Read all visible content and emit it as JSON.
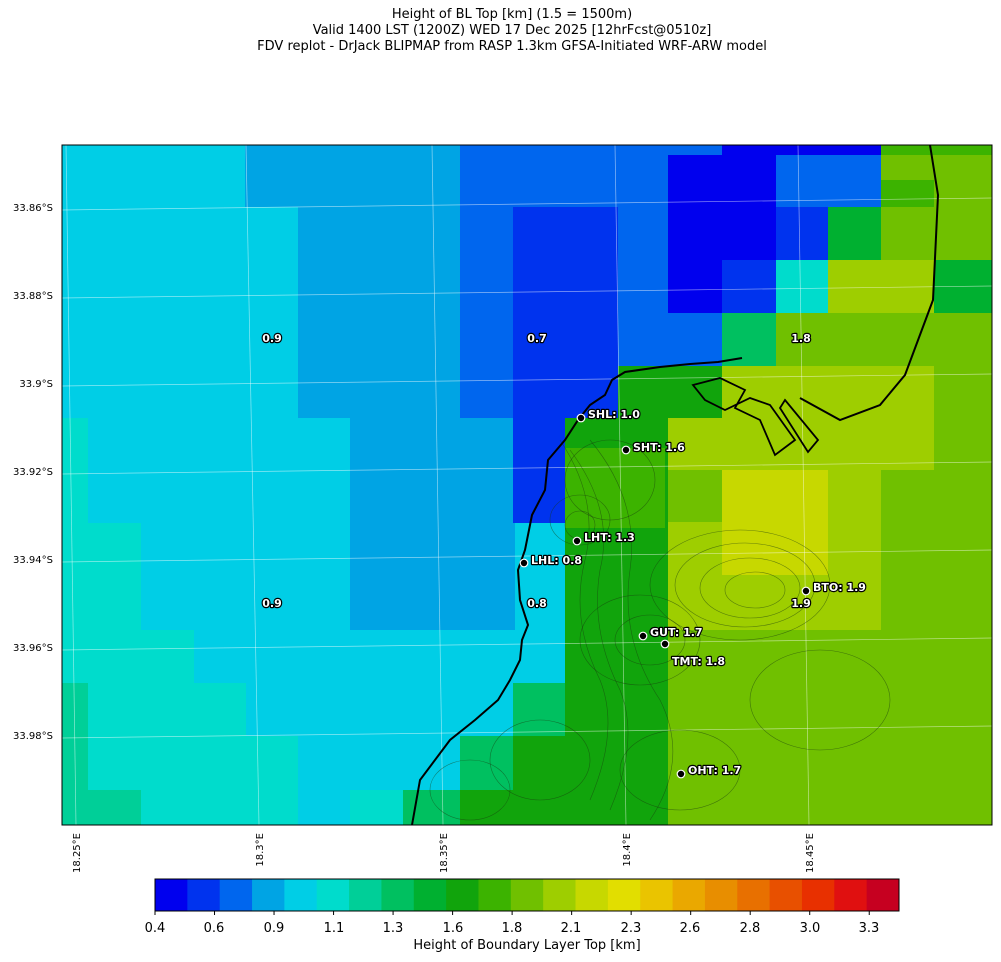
{
  "header": {
    "title_line1": "Height of BL Top [km] (1.5 = 1500m)",
    "title_line2": "Valid 1400 LST (1200Z) WED 17 Dec 2025 [12hrFcst@0510z]",
    "title_line3": "FDV replot - DrJack BLIPMAP from RASP 1.3km GFSA-Initiated WRF-ARW model"
  },
  "map": {
    "lat_ticks": [
      "33.86°S",
      "33.88°S",
      "33.9°S",
      "33.92°S",
      "33.94°S",
      "33.96°S",
      "33.98°S"
    ],
    "lon_ticks": [
      "18.25°E",
      "18.3°E",
      "18.35°E",
      "18.4°E",
      "18.45°E"
    ],
    "cell_values": [
      {
        "text": "0.9"
      },
      {
        "text": "0.7"
      },
      {
        "text": "1.8"
      },
      {
        "text": "0.9"
      },
      {
        "text": "0.8"
      },
      {
        "text": "1.9"
      }
    ],
    "stations": [
      {
        "code": "SHL",
        "label": "SHL: 1.0"
      },
      {
        "code": "SHT",
        "label": "SHT: 1.6"
      },
      {
        "code": "LHT",
        "label": "LHT: 1.3"
      },
      {
        "code": "LHL",
        "label": "LHL: 0.8"
      },
      {
        "code": "BTO",
        "label": "BTO: 1.9"
      },
      {
        "code": "GUT",
        "label": "GUT: 1.7"
      },
      {
        "code": "TMT",
        "label": "TMT: 1.8"
      },
      {
        "code": "OHT",
        "label": "OHT: 1.7"
      }
    ],
    "field_colors": {
      "c07": "#0033ee",
      "c05": "#0000ee",
      "c08": "#0066ee",
      "c085": "#00a4e4",
      "c09": "#00cee6",
      "c11": "#00dccc",
      "c12": "#00cf98",
      "c13": "#00c060",
      "c14": "#00b030",
      "c16": "#11a40c",
      "c17": "#3cb300",
      "c18": "#70c000",
      "c19": "#9ece00",
      "c20": "#c7d800",
      "land_blue": "#00cee6"
    }
  },
  "colorbar": {
    "label": "Height of Boundary Layer Top [km]",
    "ticks": [
      "0.4",
      "0.6",
      "0.9",
      "1.1",
      "1.3",
      "1.6",
      "1.8",
      "2.1",
      "2.3",
      "2.6",
      "2.8",
      "3.0",
      "3.3"
    ],
    "colors": [
      "#0000ee",
      "#0033ee",
      "#0066ee",
      "#00a4e4",
      "#00cee6",
      "#00dccc",
      "#00cf98",
      "#00c060",
      "#00b030",
      "#11a40c",
      "#3cb300",
      "#70c000",
      "#9ece00",
      "#c7d800",
      "#e2de00",
      "#eac400",
      "#eaa800",
      "#e88e00",
      "#e87000",
      "#e85000",
      "#e83000",
      "#e01010",
      "#c60020"
    ]
  }
}
